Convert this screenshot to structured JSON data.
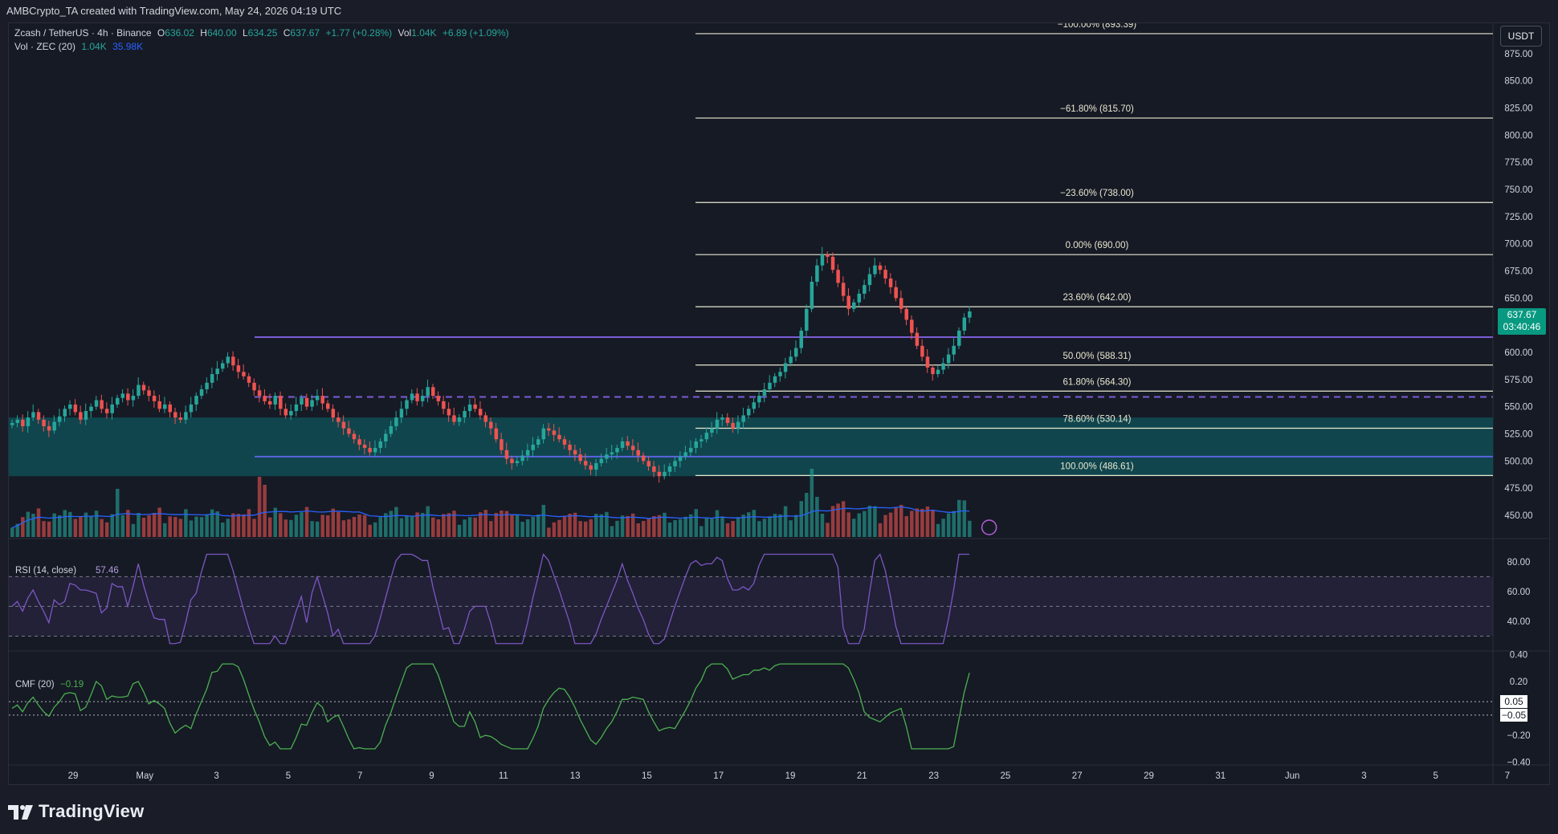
{
  "header": {
    "attribution": "AMBCrypto_TA created with TradingView.com, May 24, 2026 04:19 UTC"
  },
  "legend": {
    "symbol": "Zcash / TetherUS · 4h · Binance",
    "open_label": "O",
    "open": "636.02",
    "high_label": "H",
    "high": "640.00",
    "low_label": "L",
    "low": "634.25",
    "close_label": "C",
    "close": "637.67",
    "change": "+1.77 (+0.28%)",
    "vol_label": "Vol",
    "vol": "1.04K",
    "vol_change": "+6.89 (+1.09%)",
    "vol_ind_label": "Vol · ZEC (20)",
    "vol_ind_val1": "1.04K",
    "vol_ind_val2": "35.98K"
  },
  "currency_button": "USDT",
  "current_price": {
    "price": "637.67",
    "countdown": "03:40:46"
  },
  "colors": {
    "up": "#26a69a",
    "down": "#ef5350",
    "bg": "#161a25",
    "fib": "#e8e8d0",
    "zone": "#0f4e55",
    "resistance": "#7b5cd6",
    "rsi_line": "#7e57c2",
    "cmf_line": "#4caf50",
    "accent": "#089981"
  },
  "chart_data": [
    {
      "type": "candlestick",
      "title": "Zcash / TetherUS · 4h · Binance",
      "ylim": [
        430,
        900
      ],
      "y_ticks": [
        "875.00",
        "850.00",
        "825.00",
        "800.00",
        "775.00",
        "750.00",
        "725.00",
        "700.00",
        "675.00",
        "650.00",
        "625.00",
        "600.00",
        "575.00",
        "550.00",
        "525.00",
        "500.00",
        "475.00",
        "450.00"
      ],
      "x_ticks": [
        "29",
        "May",
        "3",
        "5",
        "7",
        "9",
        "11",
        "13",
        "15",
        "17",
        "19",
        "21",
        "23",
        "25",
        "27",
        "29",
        "31",
        "Jun",
        "3",
        "5",
        "7"
      ],
      "fib_levels": [
        {
          "label": "−100.00% (893.39)",
          "value": 893.39
        },
        {
          "label": "−61.80% (815.70)",
          "value": 815.7
        },
        {
          "label": "−23.60% (738.00)",
          "value": 738.0
        },
        {
          "label": "0.00% (690.00)",
          "value": 690.0
        },
        {
          "label": "23.60% (642.00)",
          "value": 642.0
        },
        {
          "label": "50.00% (588.31)",
          "value": 588.31
        },
        {
          "label": "61.80% (564.30)",
          "value": 564.3
        },
        {
          "label": "78.60% (530.14)",
          "value": 530.14
        },
        {
          "label": "100.00% (486.61)",
          "value": 486.61
        }
      ],
      "horizontal_lines": [
        {
          "style": "solid",
          "value": 614
        },
        {
          "style": "dashed",
          "value": 559
        },
        {
          "style": "solid",
          "value": 504
        }
      ],
      "demand_zone": [
        486,
        540
      ],
      "closes": [
        535,
        538,
        532,
        540,
        545,
        538,
        532,
        528,
        536,
        541,
        548,
        552,
        545,
        538,
        546,
        550,
        556,
        548,
        544,
        552,
        558,
        562,
        556,
        560,
        570,
        565,
        560,
        555,
        548,
        552,
        545,
        540,
        538,
        545,
        552,
        560,
        566,
        572,
        580,
        585,
        590,
        596,
        588,
        582,
        578,
        572,
        565,
        560,
        555,
        552,
        560,
        548,
        542,
        546,
        552,
        558,
        550,
        556,
        560,
        553,
        548,
        540,
        536,
        530,
        525,
        520,
        515,
        512,
        508,
        512,
        518,
        525,
        532,
        540,
        548,
        556,
        562,
        555,
        560,
        568,
        560,
        555,
        548,
        542,
        536,
        540,
        546,
        552,
        548,
        542,
        536,
        530,
        520,
        510,
        502,
        498,
        500,
        505,
        510,
        515,
        520,
        530,
        528,
        524,
        520,
        515,
        510,
        506,
        500,
        496,
        492,
        498,
        502,
        506,
        508,
        512,
        518,
        514,
        510,
        505,
        500,
        495,
        490,
        486,
        490,
        495,
        500,
        504,
        508,
        512,
        518,
        520,
        526,
        530,
        538,
        540,
        535,
        530,
        536,
        542,
        548,
        554,
        560,
        566,
        572,
        578,
        582,
        590,
        596,
        604,
        620,
        640,
        665,
        680,
        690,
        688,
        676,
        664,
        652,
        640,
        646,
        654,
        662,
        672,
        680,
        676,
        668,
        660,
        650,
        640,
        630,
        618,
        606,
        596,
        586,
        580,
        584,
        590,
        598,
        606,
        620,
        632,
        637.67
      ],
      "volume_ma_label": "20"
    },
    {
      "type": "line",
      "title": "RSI (14, close)",
      "value_label": "57.46",
      "ylim": [
        20,
        95
      ],
      "y_ticks": [
        "80.00",
        "60.00",
        "40.00"
      ],
      "bands": [
        70,
        50,
        30
      ]
    },
    {
      "type": "line",
      "title": "CMF (20)",
      "value_label": "−0.19",
      "ylim": [
        -0.42,
        0.42
      ],
      "y_ticks": [
        "0.40",
        "0.20",
        "−0.20",
        "−0.40"
      ],
      "bands": [
        0.05,
        -0.05
      ],
      "band_labels": [
        "0.05",
        "−0.05"
      ]
    }
  ]
}
